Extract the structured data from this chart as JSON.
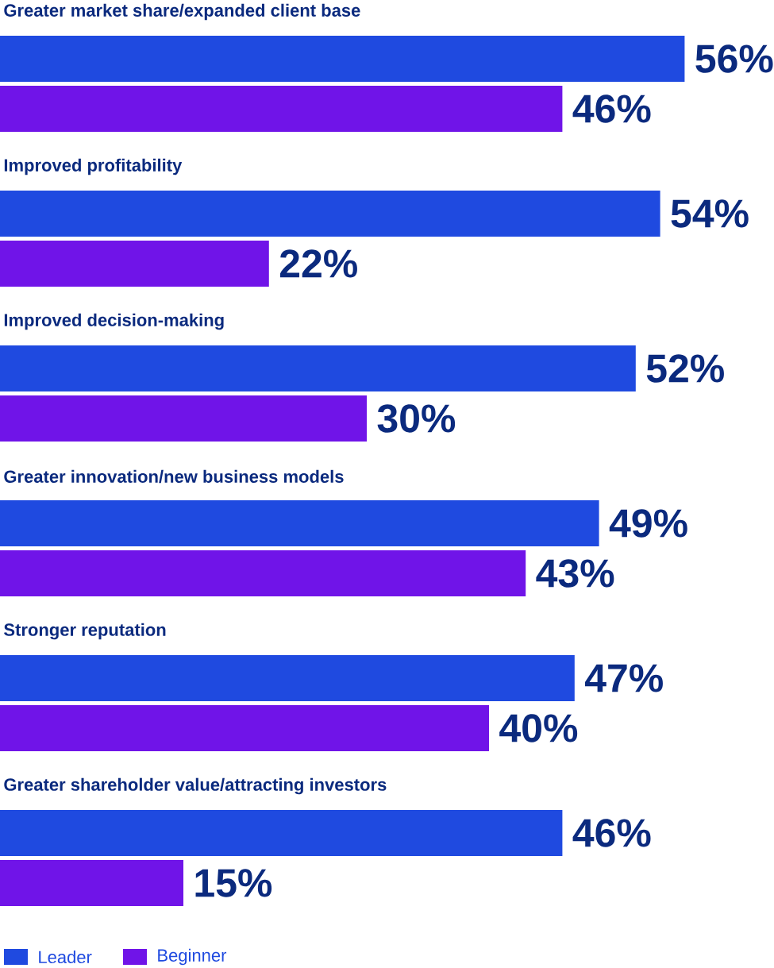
{
  "chart_data": {
    "type": "bar",
    "orientation": "horizontal",
    "categories": [
      "Greater market share/expanded client base",
      "Improved profitability",
      "Improved decision-making",
      "Greater innovation/new business models",
      "Stronger reputation",
      "Greater shareholder value/attracting investors"
    ],
    "series": [
      {
        "name": "Leader",
        "color": "#1f4ae0",
        "values": [
          56,
          54,
          52,
          49,
          47,
          46
        ],
        "value_labels": [
          "56%",
          "54%",
          "52%",
          "49%",
          "47%",
          "46%"
        ]
      },
      {
        "name": "Beginner",
        "color": "#7014e8",
        "values": [
          46,
          22,
          30,
          43,
          40,
          15
        ],
        "value_labels": [
          "46%",
          "22%",
          "30%",
          "43%",
          "40%",
          "15%"
        ]
      }
    ],
    "tick_labels": false,
    "legend": "bottom left"
  }
}
